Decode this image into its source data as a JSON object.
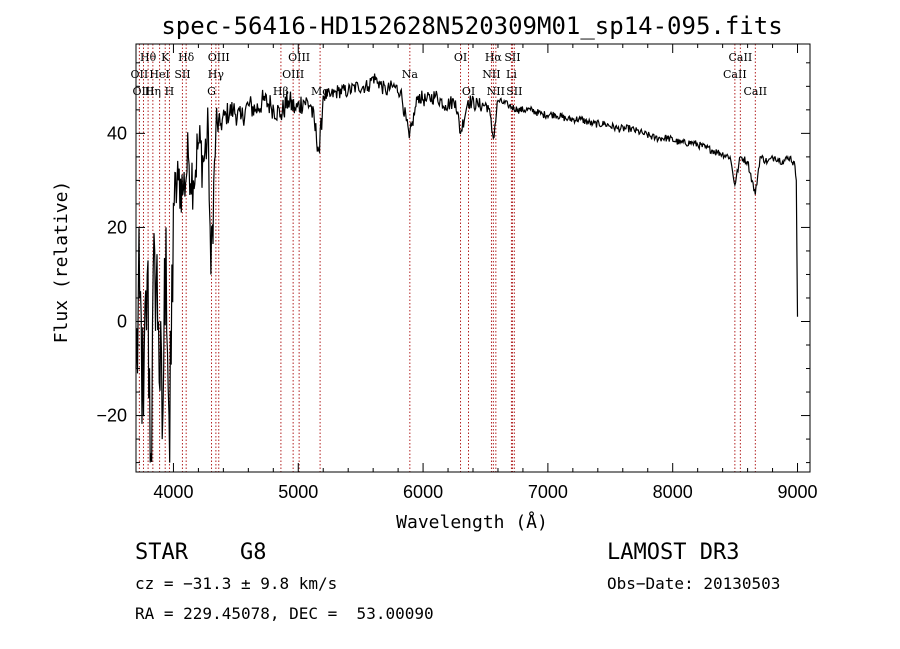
{
  "chart_data": {
    "type": "line",
    "title": "spec-56416-HD152628N520309M01_sp14-095.fits",
    "xlabel": "Wavelength (Å)",
    "ylabel": "Flux (relative)",
    "xlim": [
      3700,
      9100
    ],
    "ylim": [
      -32,
      59
    ],
    "xticks": [
      4000,
      5000,
      6000,
      7000,
      8000,
      9000
    ],
    "yticks": [
      -20,
      0,
      20,
      40
    ],
    "series": [
      {
        "name": "spectrum",
        "x": [
          3700,
          3730,
          3760,
          3790,
          3820,
          3850,
          3880,
          3910,
          3940,
          3970,
          4000,
          4040,
          4080,
          4120,
          4160,
          4200,
          4240,
          4280,
          4300,
          4340,
          4380,
          4420,
          4480,
          4540,
          4600,
          4660,
          4720,
          4780,
          4860,
          4920,
          4980,
          5040,
          5100,
          5170,
          5200,
          5260,
          5320,
          5400,
          5480,
          5560,
          5600,
          5640,
          5700,
          5760,
          5820,
          5890,
          5960,
          6020,
          6100,
          6180,
          6260,
          6300,
          6360,
          6440,
          6520,
          6563,
          6600,
          6680,
          6760,
          6860,
          6960,
          7060,
          7160,
          7260,
          7360,
          7460,
          7560,
          7660,
          7760,
          7860,
          7960,
          8060,
          8160,
          8260,
          8360,
          8460,
          8498,
          8542,
          8600,
          8662,
          8700,
          8760,
          8820,
          8880,
          8940,
          8980,
          8990,
          9000
        ],
        "values": [
          -10,
          5,
          -20,
          10,
          -28,
          15,
          0,
          -25,
          20,
          -30,
          25,
          30,
          28,
          35,
          30,
          38,
          34,
          40,
          10,
          41,
          42,
          44,
          45,
          43,
          46,
          45,
          47,
          46,
          44,
          47,
          45,
          47,
          46,
          36,
          48,
          48,
          49,
          49,
          50,
          50,
          52,
          51,
          49,
          50,
          49,
          39,
          48,
          47,
          48,
          46,
          47,
          40,
          47,
          46,
          46,
          39,
          47,
          46,
          45,
          45,
          44,
          44,
          43,
          43,
          42,
          42,
          41,
          41,
          40,
          39,
          39,
          38,
          38,
          37,
          36,
          35,
          29,
          35,
          34,
          27,
          35,
          34,
          35,
          34,
          35,
          33,
          30,
          1
        ]
      }
    ],
    "lines": [
      {
        "name": "Hθ",
        "wavelength": 3797
      },
      {
        "name": "OII",
        "wavelength": 3727
      },
      {
        "name": "OIII",
        "wavelength": 3760
      },
      {
        "name": "Hη",
        "wavelength": 3835
      },
      {
        "name": "HeI",
        "wavelength": 3889
      },
      {
        "name": "K",
        "wavelength": 3934
      },
      {
        "name": "H",
        "wavelength": 3968
      },
      {
        "name": "SII",
        "wavelength": 4072
      },
      {
        "name": "Hδ",
        "wavelength": 4102
      },
      {
        "name": "G",
        "wavelength": 4305
      },
      {
        "name": "Hγ",
        "wavelength": 4340
      },
      {
        "name": "OIII",
        "wavelength": 4363
      },
      {
        "name": "Hβ",
        "wavelength": 4861
      },
      {
        "name": "OIII",
        "wavelength": 4959
      },
      {
        "name": "OIII",
        "wavelength": 5007
      },
      {
        "name": "Mg",
        "wavelength": 5175
      },
      {
        "name": "Na",
        "wavelength": 5894
      },
      {
        "name": "OI",
        "wavelength": 6300
      },
      {
        "name": "OI",
        "wavelength": 6364
      },
      {
        "name": "NII",
        "wavelength": 6548
      },
      {
        "name": "Hα",
        "wavelength": 6563
      },
      {
        "name": "NII",
        "wavelength": 6583
      },
      {
        "name": "Li",
        "wavelength": 6708
      },
      {
        "name": "SII",
        "wavelength": 6716
      },
      {
        "name": "SII",
        "wavelength": 6731
      },
      {
        "name": "CaII",
        "wavelength": 8498
      },
      {
        "name": "CaII",
        "wavelength": 8542
      },
      {
        "name": "CaII",
        "wavelength": 8662
      }
    ],
    "annotations": [
      {
        "text": "Hθ",
        "x": 3797,
        "row": 0
      },
      {
        "text": "K",
        "x": 3934,
        "row": 0
      },
      {
        "text": "Hδ",
        "x": 4102,
        "row": 0
      },
      {
        "text": "OIII",
        "x": 4363,
        "row": 0
      },
      {
        "text": "OIII",
        "x": 5007,
        "row": 0
      },
      {
        "text": "OI",
        "x": 6300,
        "row": 0
      },
      {
        "text": "Hα",
        "x": 6563,
        "row": 0
      },
      {
        "text": "SII",
        "x": 6716,
        "row": 0
      },
      {
        "text": "CaII",
        "x": 8542,
        "row": 0
      },
      {
        "text": "OII",
        "x": 3727,
        "row": 1
      },
      {
        "text": "HeI",
        "x": 3889,
        "row": 1
      },
      {
        "text": "SII",
        "x": 4072,
        "row": 1
      },
      {
        "text": "Hγ",
        "x": 4340,
        "row": 1
      },
      {
        "text": "OIII",
        "x": 4959,
        "row": 1
      },
      {
        "text": "Na",
        "x": 5894,
        "row": 1
      },
      {
        "text": "NII",
        "x": 6548,
        "row": 1
      },
      {
        "text": "Li",
        "x": 6708,
        "row": 1
      },
      {
        "text": "CaII",
        "x": 8498,
        "row": 1
      },
      {
        "text": "OIII",
        "x": 3760,
        "row": 2
      },
      {
        "text": "Hη",
        "x": 3835,
        "row": 2
      },
      {
        "text": "H",
        "x": 3968,
        "row": 2
      },
      {
        "text": "G",
        "x": 4305,
        "row": 2
      },
      {
        "text": "Hβ",
        "x": 4861,
        "row": 2
      },
      {
        "text": "Mg",
        "x": 5175,
        "row": 2
      },
      {
        "text": "OI",
        "x": 6364,
        "row": 2
      },
      {
        "text": "NII",
        "x": 6583,
        "row": 2
      },
      {
        "text": "SII",
        "x": 6731,
        "row": 2
      },
      {
        "text": "CaII",
        "x": 8662,
        "row": 2
      }
    ]
  },
  "info": {
    "class": "STAR",
    "subclass": "G8",
    "survey": "LAMOST DR3",
    "cz": "cz = −31.3 ± 9.8 km/s",
    "obs_date": "Obs−Date: 20130503",
    "radec": "RA = 229.45078, DEC =  53.00090"
  },
  "colors": {
    "line_marker": "#b22222",
    "spectrum": "#000000"
  }
}
